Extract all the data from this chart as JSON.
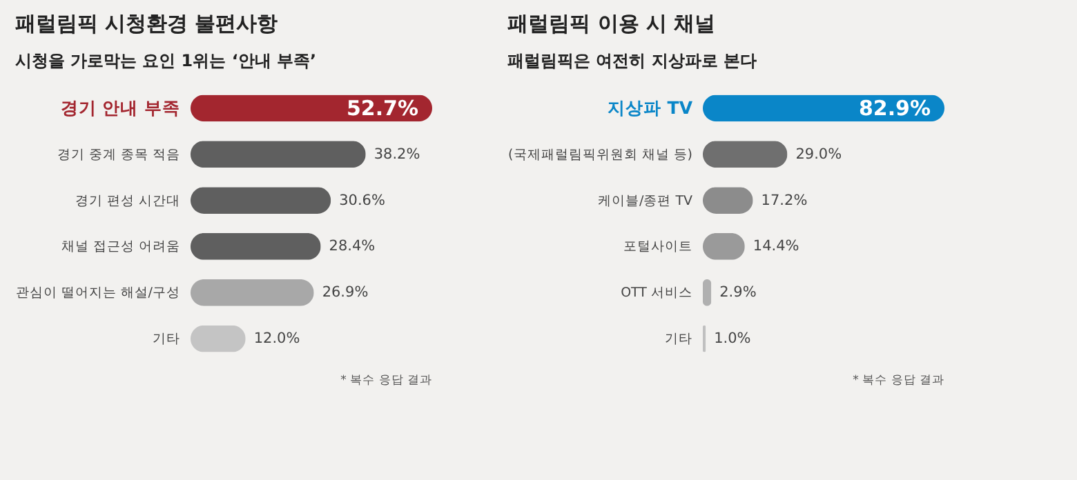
{
  "chart_data": [
    {
      "type": "bar",
      "orientation": "horizontal",
      "title": "패럴림픽 시청환경 불편사항",
      "subtitle": "시청을 가로막는 요인 1위는 ‘안내 부족’",
      "categories": [
        "경기 안내 부족",
        "경기 중계 종목 적음",
        "경기 편성 시간대",
        "채널 접근성 어려움",
        "관심이 떨어지는 해설/구성",
        "기타"
      ],
      "values": [
        52.7,
        38.2,
        30.6,
        28.4,
        26.9,
        12.0
      ],
      "value_labels": [
        "52.7%",
        "38.2%",
        "30.6%",
        "28.4%",
        "26.9%",
        "12.0%"
      ],
      "colors": [
        "#a3262f",
        "#5f5f5f",
        "#5f5f5f",
        "#5f5f5f",
        "#a8a8a8",
        "#c4c4c4"
      ],
      "annotations": [
        "* 복수 응답 결과"
      ]
    },
    {
      "type": "bar",
      "orientation": "horizontal",
      "title": "패럴림픽 이용 시 채널",
      "subtitle": "패럴림픽은 여전히 지상파로 본다",
      "categories": [
        "지상파 TV",
        "(국제패럴림픽위원회 채널 등)",
        "케이블/종편 TV",
        "포털사이트",
        "OTT 서비스",
        "기타"
      ],
      "values": [
        82.9,
        29.0,
        17.2,
        14.4,
        2.9,
        1.0
      ],
      "value_labels": [
        "82.9%",
        "29.0%",
        "17.2%",
        "14.4%",
        "2.9%",
        "1.0%"
      ],
      "colors": [
        "#0a86c8",
        "#6f6f6f",
        "#8c8c8c",
        "#9a9a9a",
        "#b0b0b0",
        "#c0c0c0"
      ],
      "annotations": [
        "* 복수 응답 결과"
      ]
    }
  ]
}
